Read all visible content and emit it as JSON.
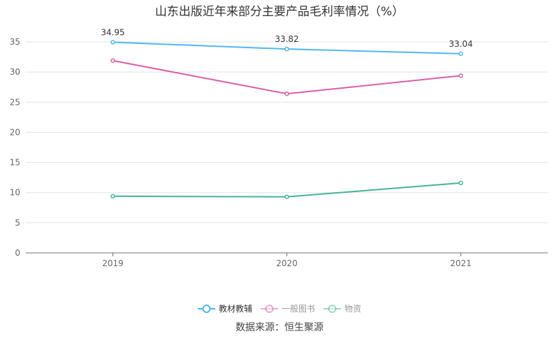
{
  "chart_data": {
    "type": "line",
    "title": "山东出版近年来部分主要产品毛利率情况（%）",
    "categories": [
      "2019",
      "2020",
      "2021"
    ],
    "ylim": [
      0,
      37
    ],
    "yticks": [
      0,
      5,
      10,
      15,
      20,
      25,
      30,
      35
    ],
    "grid": true,
    "legend_position": "bottom",
    "series": [
      {
        "name": "教材教辅",
        "values": [
          34.95,
          33.82,
          33.04
        ],
        "color": "#4db8f0",
        "labels": [
          "34.95",
          "33.82",
          "33.04"
        ],
        "legend_text_color": "#333333"
      },
      {
        "name": "一般图书",
        "values": [
          31.9,
          26.4,
          29.4
        ],
        "color": "#d95fa8",
        "legend_text_color": "#999999"
      },
      {
        "name": "物资",
        "values": [
          9.4,
          9.3,
          11.6
        ],
        "color": "#45b39a",
        "legend_text_color": "#999999"
      }
    ]
  },
  "source": "数据来源：恒生聚源"
}
